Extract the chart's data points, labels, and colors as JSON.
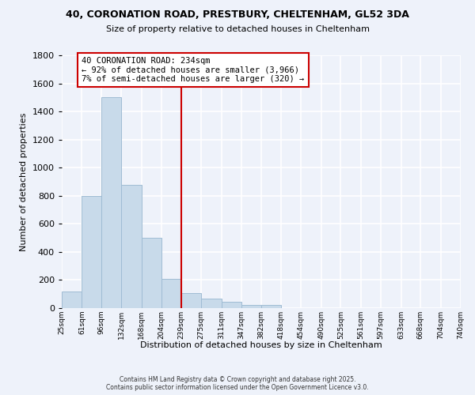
{
  "title": "40, CORONATION ROAD, PRESTBURY, CHELTENHAM, GL52 3DA",
  "subtitle": "Size of property relative to detached houses in Cheltenham",
  "xlabel": "Distribution of detached houses by size in Cheltenham",
  "ylabel": "Number of detached properties",
  "bar_color": "#c8daea",
  "bar_edge_color": "#a0bcd4",
  "background_color": "#eef2fa",
  "grid_color": "#ffffff",
  "bins": [
    25,
    61,
    96,
    132,
    168,
    204,
    239,
    275,
    311,
    347,
    382,
    418,
    454,
    490,
    525,
    561,
    597,
    633,
    668,
    704,
    740
  ],
  "bin_labels": [
    "25sqm",
    "61sqm",
    "96sqm",
    "132sqm",
    "168sqm",
    "204sqm",
    "239sqm",
    "275sqm",
    "311sqm",
    "347sqm",
    "382sqm",
    "418sqm",
    "454sqm",
    "490sqm",
    "525sqm",
    "561sqm",
    "597sqm",
    "633sqm",
    "668sqm",
    "704sqm",
    "740sqm"
  ],
  "values": [
    120,
    800,
    1500,
    880,
    500,
    210,
    105,
    65,
    45,
    25,
    20,
    0,
    0,
    0,
    0,
    0,
    0,
    0,
    0,
    0
  ],
  "vline_x": 239,
  "vline_color": "#cc0000",
  "annotation_text": "40 CORONATION ROAD: 234sqm\n← 92% of detached houses are smaller (3,966)\n7% of semi-detached houses are larger (320) →",
  "annotation_box_color": "#ffffff",
  "annotation_box_edge": "#cc0000",
  "ylim": [
    0,
    1800
  ],
  "yticks": [
    0,
    200,
    400,
    600,
    800,
    1000,
    1200,
    1400,
    1600,
    1800
  ],
  "footer_line1": "Contains HM Land Registry data © Crown copyright and database right 2025.",
  "footer_line2": "Contains public sector information licensed under the Open Government Licence v3.0."
}
